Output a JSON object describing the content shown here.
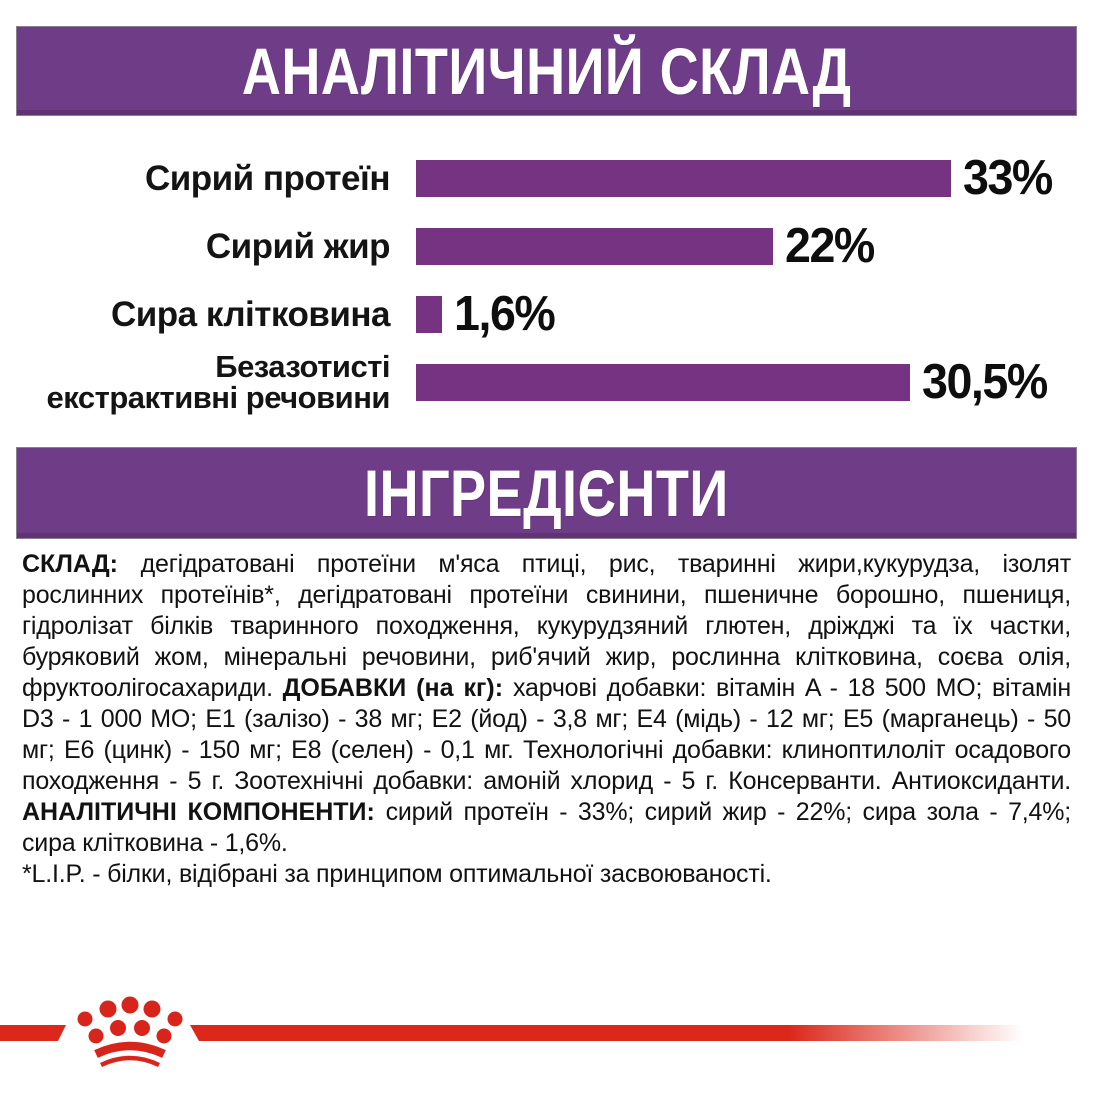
{
  "colors": {
    "banner_purple": "#6f3c88",
    "bar_purple": "#753382",
    "text_black": "#121212",
    "brand_red": "#dc281b"
  },
  "header": {
    "title": "АНАЛІТИЧНИЙ СКЛАД"
  },
  "chart_data": {
    "type": "bar",
    "orientation": "horizontal",
    "unit": "%",
    "max_scale": 33,
    "bar_color": "#753382",
    "bars": [
      {
        "label": "Сирий протеїн",
        "value": 33,
        "display": "33%"
      },
      {
        "label": "Сирий жир",
        "value": 22,
        "display": "22%"
      },
      {
        "label": "Сира клітковина",
        "value": 1.6,
        "display": "1,6%"
      },
      {
        "label": "Безазотисті екстрактивні речовини",
        "label_lines": [
          "Безазотисті",
          "екстрактивні речовини"
        ],
        "value": 30.5,
        "display": "30,5%"
      }
    ]
  },
  "ingredients": {
    "banner": "ІНГРЕДІЄНТИ",
    "paragraph_segments": [
      {
        "bold": true,
        "text": "СКЛАД: "
      },
      {
        "bold": false,
        "text": "дегідратовані протеїни м'яса птиці, рис, тваринні жири,кукурудза, ізолят рослинних протеїнів*, дегідратовані протеїни свинини, пшеничне борошно, пшениця, гідролізат білків тваринного походження, кукурудзяний глютен, дріжджі та їх частки, буряковий жом, мінеральні речовини, риб'ячий жир, рослинна клітковина, соєва олія, фруктоолігосахариди. "
      },
      {
        "bold": true,
        "text": "ДОБАВКИ (на кг): "
      },
      {
        "bold": false,
        "text": "харчові добавки: вітамін A - 18 500 МО; вітамін D3 - 1 000 МО; E1 (залізо) - 38 мг; E2 (йод) - 3,8 мг; E4 (мідь) - 12 мг; E5 (марганець) - 50 мг; E6 (цинк) - 150 мг; E8 (селен) - 0,1 мг. Технологічні добавки: клиноптилоліт осадового походження - 5 г. Зоотехнічні добавки: амоній хлорид - 5 г. Консерванти. Антиоксиданти. "
      },
      {
        "bold": true,
        "text": "АНАЛІТИЧНІ КОМПОНЕНТИ: "
      },
      {
        "bold": false,
        "text": "сирий протеїн - 33%; сирий жир - 22%; сира зола - 7,4%; сира клітковина - 1,6%."
      }
    ],
    "footnote": "*L.I.P. - білки, відібрані за принципом оптимальної засвоюваності."
  },
  "footer": {
    "logo": "royal-canin-crown"
  }
}
